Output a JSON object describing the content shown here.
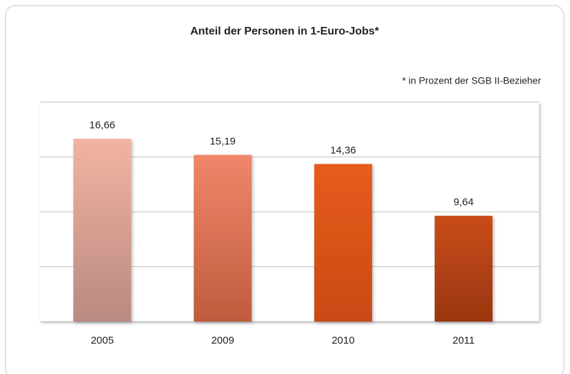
{
  "chart_data": {
    "type": "bar",
    "title": "Anteil der Personen in 1-Euro-Jobs*",
    "subtitle": "* in Prozent der SGB II-Bezieher",
    "categories": [
      "2005",
      "2009",
      "2010",
      "2011"
    ],
    "values": [
      16.66,
      15.19,
      14.36,
      9.64
    ],
    "value_labels": [
      "16,66",
      "15,19",
      "14,36",
      "9,64"
    ],
    "colors": [
      "#f2b3a3",
      "#f0866a",
      "#e65c1e",
      "#c84c18"
    ],
    "gradient_colors": [
      "#b98a80",
      "#bf5c3e",
      "#c94a12",
      "#9a3610"
    ],
    "ylim": [
      0,
      20
    ],
    "yticks": [
      0,
      5,
      10,
      15,
      20
    ],
    "grid": true
  }
}
